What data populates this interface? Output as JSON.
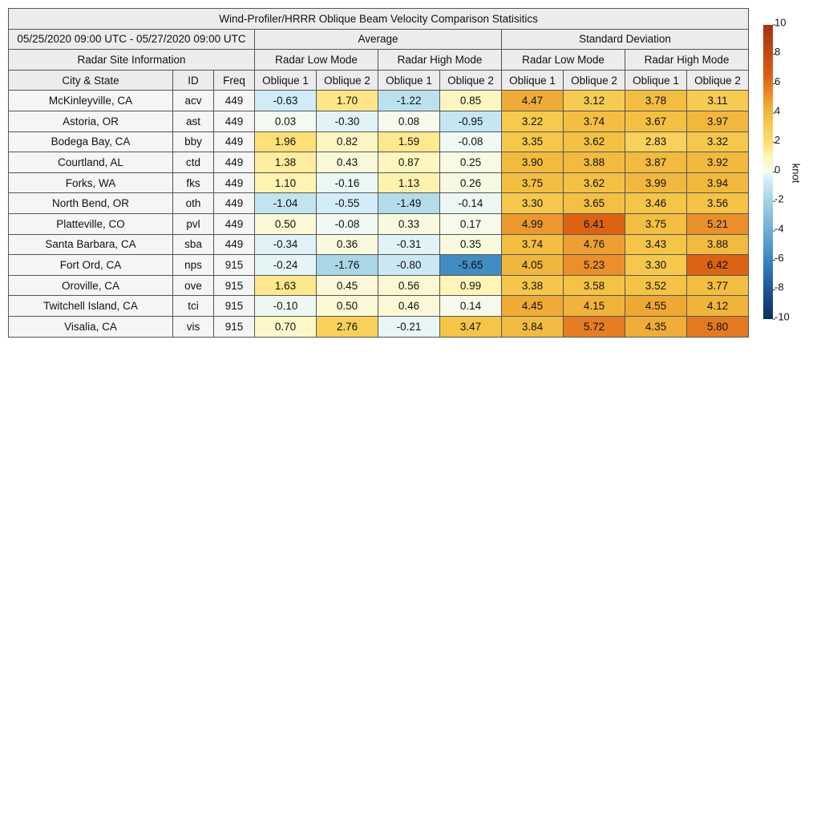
{
  "title": "Wind-Profiler/HRRR Oblique Beam Velocity Comparison Statisitics",
  "date_range": "05/25/2020 09:00 UTC - 05/27/2020 09:00 UTC",
  "groups": [
    "Average",
    "Standard Deviation"
  ],
  "site_info": "Radar Site Information",
  "modes": [
    "Radar Low Mode",
    "Radar High Mode",
    "Radar Low Mode",
    "Radar High Mode"
  ],
  "columns": [
    "City & State",
    "ID",
    "Freq",
    "Oblique 1",
    "Oblique 2",
    "Oblique 1",
    "Oblique 2",
    "Oblique 1",
    "Oblique 2",
    "Oblique 1",
    "Oblique 2"
  ],
  "rows": [
    [
      "McKinleyville, CA",
      "acv",
      "449",
      "-0.63",
      "1.70",
      "-1.22",
      "0.85",
      "4.47",
      "3.12",
      "3.78",
      "3.11"
    ],
    [
      "Astoria, OR",
      "ast",
      "449",
      "0.03",
      "-0.30",
      "0.08",
      "-0.95",
      "3.22",
      "3.74",
      "3.67",
      "3.97"
    ],
    [
      "Bodega Bay, CA",
      "bby",
      "449",
      "1.96",
      "0.82",
      "1.59",
      "-0.08",
      "3.35",
      "3.62",
      "2.83",
      "3.32"
    ],
    [
      "Courtland, AL",
      "ctd",
      "449",
      "1.38",
      "0.43",
      "0.87",
      "0.25",
      "3.90",
      "3.88",
      "3.87",
      "3.92"
    ],
    [
      "Forks, WA",
      "fks",
      "449",
      "1.10",
      "-0.16",
      "1.13",
      "0.26",
      "3.75",
      "3.62",
      "3.99",
      "3.94"
    ],
    [
      "North Bend, OR",
      "oth",
      "449",
      "-1.04",
      "-0.55",
      "-1.49",
      "-0.14",
      "3.30",
      "3.65",
      "3.46",
      "3.56"
    ],
    [
      "Platteville, CO",
      "pvl",
      "449",
      "0.50",
      "-0.08",
      "0.33",
      "0.17",
      "4.99",
      "6.41",
      "3.75",
      "5.21"
    ],
    [
      "Santa Barbara, CA",
      "sba",
      "449",
      "-0.34",
      "0.36",
      "-0.31",
      "0.35",
      "3.74",
      "4.76",
      "3.43",
      "3.88"
    ],
    [
      "Fort Ord, CA",
      "nps",
      "915",
      "-0.24",
      "-1.76",
      "-0.80",
      "-5.65",
      "4.05",
      "5.23",
      "3.30",
      "6.42"
    ],
    [
      "Oroville, CA",
      "ove",
      "915",
      "1.63",
      "0.45",
      "0.56",
      "0.99",
      "3.38",
      "3.58",
      "3.52",
      "3.77"
    ],
    [
      "Twitchell Island, CA",
      "tci",
      "915",
      "-0.10",
      "0.50",
      "0.46",
      "0.14",
      "4.45",
      "4.15",
      "4.55",
      "4.12"
    ],
    [
      "Visalia, CA",
      "vis",
      "915",
      "0.70",
      "2.76",
      "-0.21",
      "3.47",
      "3.84",
      "5.72",
      "4.35",
      "5.80"
    ]
  ],
  "colorbar": {
    "label": "knot",
    "lim": [
      -10,
      10
    ],
    "ticks": [
      -10,
      -8,
      -6,
      -4,
      -2,
      0,
      2,
      4,
      6,
      8,
      10
    ]
  }
}
